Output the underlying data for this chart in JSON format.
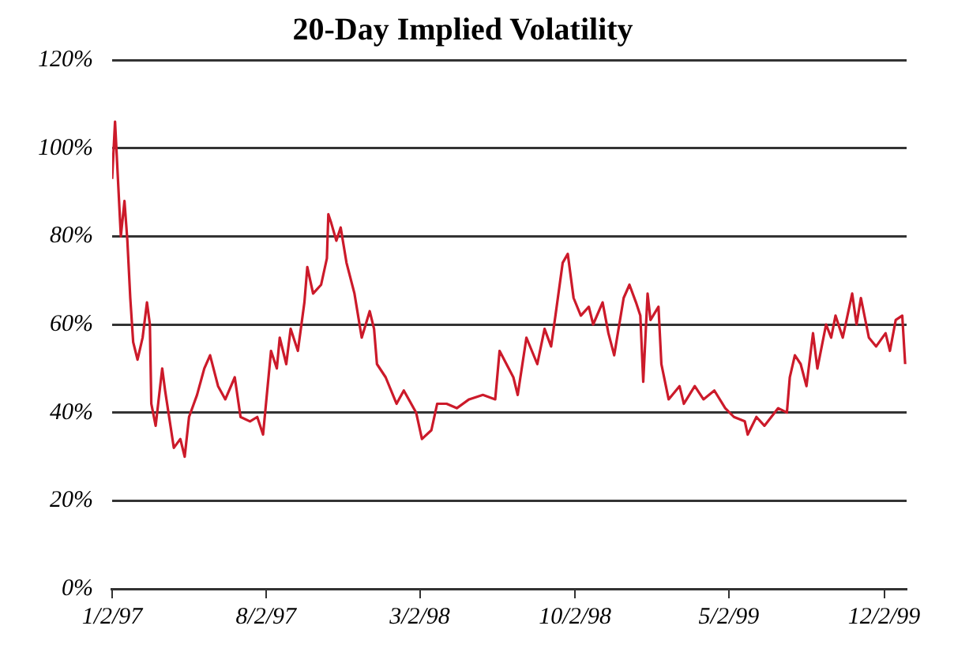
{
  "chart_data": {
    "type": "line",
    "title": "20-Day Implied Volatility",
    "x": [
      "1997-01-02",
      "1997-01-06",
      "1997-01-14",
      "1997-01-19",
      "1997-01-23",
      "1997-01-27",
      "1997-01-31",
      "1997-02-06",
      "1997-02-13",
      "1997-02-19",
      "1997-02-23",
      "1997-02-25",
      "1997-03-03",
      "1997-03-12",
      "1997-03-16",
      "1997-03-28",
      "1997-04-06",
      "1997-04-12",
      "1997-04-18",
      "1997-04-29",
      "1997-05-09",
      "1997-05-17",
      "1997-05-28",
      "1997-06-07",
      "1997-06-20",
      "1997-06-28",
      "1997-07-11",
      "1997-07-21",
      "1997-07-29",
      "1997-08-09",
      "1997-08-17",
      "1997-08-21",
      "1997-08-30",
      "1997-09-05",
      "1997-09-15",
      "1997-09-24",
      "1997-09-28",
      "1997-10-06",
      "1997-10-17",
      "1997-10-25",
      "1997-10-27",
      "1997-10-31",
      "1997-11-07",
      "1997-11-13",
      "1997-11-21",
      "1997-12-02",
      "1997-12-12",
      "1997-12-23",
      "1997-12-29",
      "1998-01-02",
      "1998-01-14",
      "1998-01-29",
      "1998-02-08",
      "1998-02-25",
      "1998-03-05",
      "1998-03-18",
      "1998-03-26",
      "1998-04-08",
      "1998-04-22",
      "1998-05-09",
      "1998-05-28",
      "1998-06-14",
      "1998-06-20",
      "1998-07-09",
      "1998-07-15",
      "1998-07-27",
      "1998-08-11",
      "1998-08-21",
      "1998-08-30",
      "1998-09-05",
      "1998-09-15",
      "1998-09-22",
      "1998-09-30",
      "1998-10-10",
      "1998-10-21",
      "1998-10-27",
      "1998-11-09",
      "1998-11-17",
      "1998-11-25",
      "1998-12-08",
      "1998-12-16",
      "1998-12-25",
      "1998-12-31",
      "1999-01-04",
      "1999-01-10",
      "1999-01-14",
      "1999-01-25",
      "1999-01-29",
      "1999-02-08",
      "1999-02-23",
      "1999-03-01",
      "1999-03-16",
      "1999-03-28",
      "1999-04-12",
      "1999-04-27",
      "1999-05-09",
      "1999-05-24",
      "1999-05-28",
      "1999-06-09",
      "1999-06-20",
      "1999-07-09",
      "1999-07-21",
      "1999-07-25",
      "1999-08-01",
      "1999-08-09",
      "1999-08-17",
      "1999-08-26",
      "1999-09-01",
      "1999-09-13",
      "1999-09-20",
      "1999-09-26",
      "1999-10-06",
      "1999-10-19",
      "1999-10-25",
      "1999-10-31",
      "1999-11-11",
      "1999-11-21",
      "1999-12-04",
      "1999-12-10",
      "1999-12-18",
      "1999-12-27",
      "1999-12-31"
    ],
    "series": [
      {
        "color": "#cc1a2a",
        "values": [
          93,
          106,
          80,
          88,
          79,
          66,
          56,
          52,
          57,
          65,
          60,
          42,
          37,
          50,
          45,
          32,
          34,
          30,
          39,
          44,
          50,
          53,
          46,
          43,
          48,
          39,
          38,
          39,
          35,
          54,
          50,
          57,
          51,
          59,
          54,
          65,
          73,
          67,
          69,
          75,
          85,
          83,
          79,
          82,
          74,
          67,
          57,
          63,
          59,
          51,
          48,
          42,
          45,
          40,
          34,
          36,
          42,
          42,
          41,
          43,
          44,
          43,
          54,
          48,
          44,
          57,
          51,
          59,
          55,
          62,
          74,
          76,
          66,
          62,
          64,
          60,
          65,
          58,
          53,
          66,
          69,
          65,
          62,
          47,
          67,
          61,
          64,
          51,
          43,
          46,
          42,
          46,
          43,
          45,
          41,
          39,
          38,
          35,
          39,
          37,
          41,
          40,
          48,
          53,
          51,
          46,
          58,
          50,
          60,
          57,
          62,
          57,
          67,
          60,
          66,
          57,
          55,
          58,
          54,
          61,
          62,
          51
        ]
      }
    ],
    "xlim": [
      "1997-01-02",
      "2000-01-02"
    ],
    "xticks": [
      {
        "value": "1997-01-02",
        "label": "1/2/97"
      },
      {
        "value": "1997-08-02",
        "label": "8/2/97"
      },
      {
        "value": "1998-03-02",
        "label": "3/2/98"
      },
      {
        "value": "1998-10-02",
        "label": "10/2/98"
      },
      {
        "value": "1999-05-02",
        "label": "5/2/99"
      },
      {
        "value": "1999-12-02",
        "label": "12/2/99"
      }
    ],
    "ylim": [
      0,
      120
    ],
    "yticks": [
      {
        "value": 0,
        "label": "0%"
      },
      {
        "value": 20,
        "label": "20%"
      },
      {
        "value": 40,
        "label": "40%"
      },
      {
        "value": 60,
        "label": "60%"
      },
      {
        "value": 80,
        "label": "80%"
      },
      {
        "value": 100,
        "label": "100%"
      },
      {
        "value": 120,
        "label": "120%"
      }
    ],
    "grid": "y",
    "marker": "none",
    "line_style": "solid"
  }
}
